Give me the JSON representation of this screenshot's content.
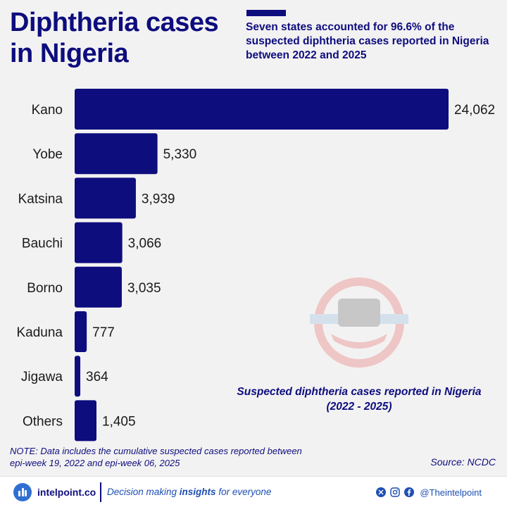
{
  "title": "Diphtheria cases in Nigeria",
  "subtitle": "Seven states accounted for 96.6% of the suspected diphtheria cases reported in Nigeria between 2022 and 2025",
  "chart_caption": "Suspected diphtheria cases reported in Nigeria (2022 - 2025)",
  "note": "NOTE: Data includes the cumulative suspected cases reported between epi-week 19, 2022 and epi-week 06, 2025",
  "source": "Source: NCDC",
  "footer": {
    "brand": "intelpoint.co",
    "tagline_pre": "Decision making ",
    "tagline_bold": "insights",
    "tagline_post": " for everyone",
    "handle": "@Theintelpoint"
  },
  "colors": {
    "bar": "#0d0d7e",
    "accent": "#2f6fd1"
  },
  "chart_data": {
    "type": "bar",
    "orientation": "horizontal",
    "categories": [
      "Kano",
      "Yobe",
      "Katsina",
      "Bauchi",
      "Borno",
      "Kaduna",
      "Jigawa",
      "Others"
    ],
    "values": [
      24062,
      5330,
      3939,
      3066,
      3035,
      777,
      364,
      1405
    ],
    "value_labels": [
      "24,062",
      "5,330",
      "3,939",
      "3,066",
      "3,035",
      "777",
      "364",
      "1,405"
    ],
    "title": "Suspected diphtheria cases reported in Nigeria (2022 - 2025)",
    "xlabel": "",
    "ylabel": "",
    "xlim": [
      0,
      24062
    ],
    "grid": false,
    "legend": "none"
  }
}
